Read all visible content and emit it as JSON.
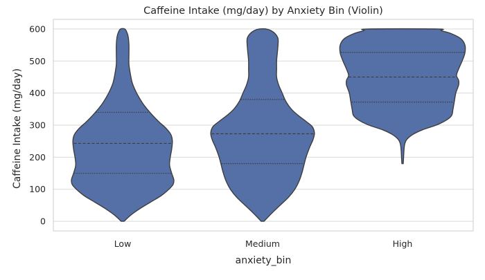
{
  "chart_data": {
    "type": "violin",
    "title": "Caffeine Intake (mg/day) by Anxiety Bin (Violin)",
    "xlabel": "anxiety_bin",
    "ylabel": "Caffeine Intake (mg/day)",
    "categories": [
      "Low",
      "Medium",
      "High"
    ],
    "ylim": [
      -30,
      630
    ],
    "yticks": [
      0,
      100,
      200,
      300,
      400,
      500,
      600
    ],
    "grid": true,
    "colors": {
      "fill": "#5470a6",
      "edge": "#3d3d3d",
      "grid": "#d9d9d9",
      "frame": "#cccccc"
    },
    "violins": [
      {
        "category": "Low",
        "min": 0,
        "max": 600,
        "quartiles": {
          "q1": 150,
          "median": 243,
          "q3": 340
        },
        "profile": [
          [
            0,
            2
          ],
          [
            20,
            12
          ],
          [
            40,
            25
          ],
          [
            60,
            40
          ],
          [
            80,
            55
          ],
          [
            100,
            66
          ],
          [
            115,
            72
          ],
          [
            130,
            73
          ],
          [
            150,
            70
          ],
          [
            175,
            67
          ],
          [
            200,
            68
          ],
          [
            225,
            70
          ],
          [
            250,
            71
          ],
          [
            270,
            69
          ],
          [
            290,
            62
          ],
          [
            310,
            52
          ],
          [
            330,
            43
          ],
          [
            350,
            35
          ],
          [
            370,
            28
          ],
          [
            400,
            20
          ],
          [
            430,
            14
          ],
          [
            460,
            11
          ],
          [
            490,
            9
          ],
          [
            520,
            9
          ],
          [
            550,
            9
          ],
          [
            575,
            8
          ],
          [
            590,
            6
          ],
          [
            600,
            3
          ]
        ]
      },
      {
        "category": "Medium",
        "min": 0,
        "max": 600,
        "quartiles": {
          "q1": 180,
          "median": 273,
          "q3": 380
        },
        "profile": [
          [
            0,
            2
          ],
          [
            25,
            13
          ],
          [
            50,
            25
          ],
          [
            75,
            37
          ],
          [
            100,
            46
          ],
          [
            125,
            52
          ],
          [
            150,
            56
          ],
          [
            175,
            59
          ],
          [
            200,
            62
          ],
          [
            230,
            67
          ],
          [
            255,
            72
          ],
          [
            275,
            74
          ],
          [
            295,
            71
          ],
          [
            310,
            63
          ],
          [
            330,
            51
          ],
          [
            350,
            41
          ],
          [
            375,
            33
          ],
          [
            400,
            28
          ],
          [
            425,
            23
          ],
          [
            450,
            20
          ],
          [
            475,
            20
          ],
          [
            500,
            20
          ],
          [
            525,
            21
          ],
          [
            550,
            22
          ],
          [
            570,
            22
          ],
          [
            585,
            18
          ],
          [
            595,
            12
          ],
          [
            600,
            5
          ]
        ]
      },
      {
        "category": "High",
        "min": 180,
        "max": 600,
        "quartiles": {
          "q1": 372,
          "median": 450,
          "q3": 527
        },
        "profile": [
          [
            180,
            1
          ],
          [
            200,
            1.5
          ],
          [
            220,
            2
          ],
          [
            240,
            3
          ],
          [
            255,
            6
          ],
          [
            270,
            14
          ],
          [
            285,
            28
          ],
          [
            300,
            48
          ],
          [
            315,
            62
          ],
          [
            330,
            70
          ],
          [
            350,
            72
          ],
          [
            375,
            74
          ],
          [
            400,
            76
          ],
          [
            425,
            80
          ],
          [
            440,
            80
          ],
          [
            455,
            77
          ],
          [
            475,
            80
          ],
          [
            500,
            85
          ],
          [
            525,
            89
          ],
          [
            550,
            89
          ],
          [
            570,
            83
          ],
          [
            585,
            70
          ],
          [
            595,
            55
          ],
          [
            600,
            50
          ]
        ]
      }
    ]
  }
}
